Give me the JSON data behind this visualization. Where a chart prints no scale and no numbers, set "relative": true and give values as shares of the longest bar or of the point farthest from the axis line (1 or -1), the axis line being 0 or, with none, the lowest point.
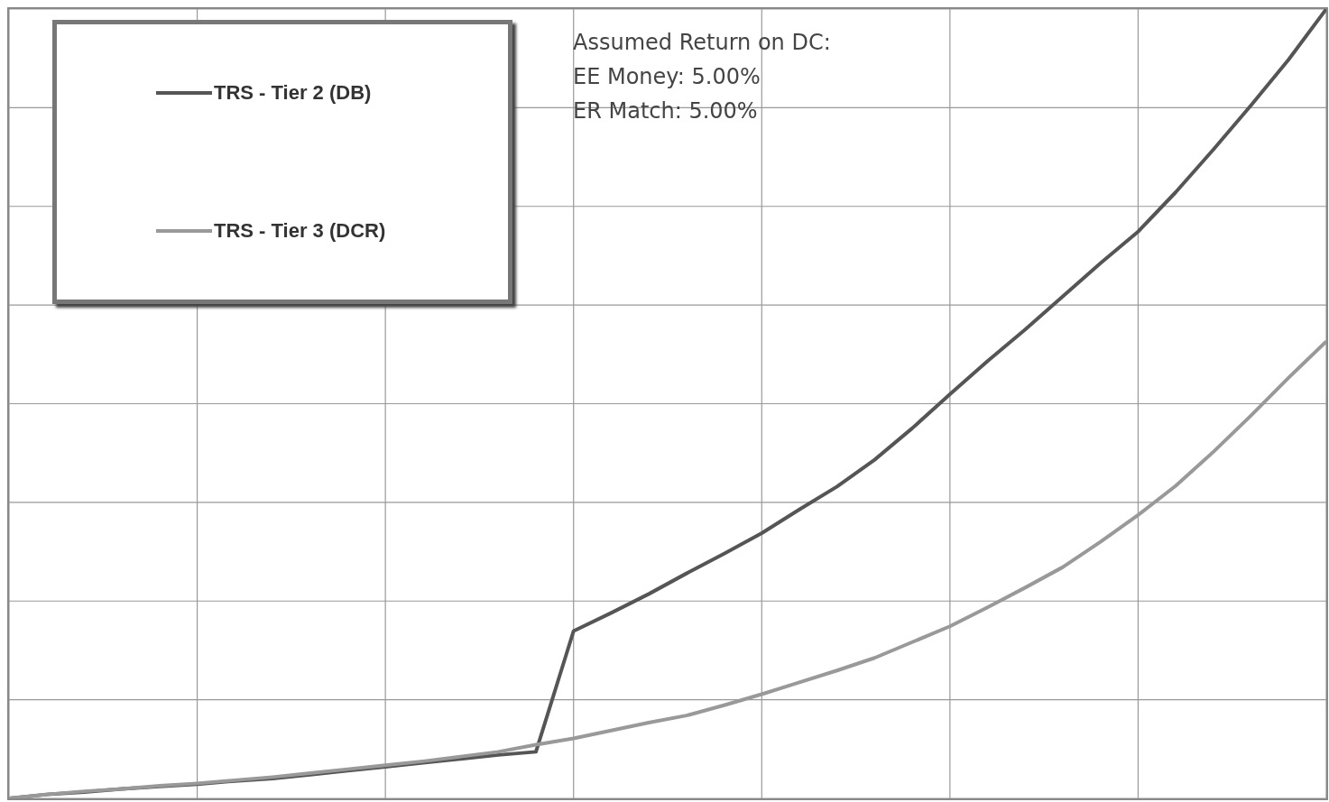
{
  "chart_data": {
    "type": "line",
    "relative": true,
    "grid": true,
    "legend": "top left",
    "marker": "none",
    "line_style": "solid",
    "categories": [
      null,
      null,
      null,
      null,
      null,
      null,
      null,
      null,
      null,
      null,
      null,
      null,
      null,
      null,
      null,
      null,
      null,
      null,
      null,
      null,
      null,
      null,
      null,
      null,
      null,
      null,
      null,
      null,
      null,
      null,
      null,
      null,
      null,
      null,
      null,
      null
    ],
    "annotations": [
      "Assumed Return on DC:",
      "EE Money: 5.00%",
      "ER Match: 5.00%"
    ],
    "series": [
      {
        "name": "TRS - Tier 2 (DB)",
        "color": "#555555",
        "values": [
          0,
          0.005,
          0.008,
          0.012,
          0.015,
          0.018,
          0.022,
          0.025,
          0.03,
          0.035,
          0.04,
          0.045,
          0.05,
          0.055,
          0.059,
          0.212,
          0.235,
          0.259,
          0.285,
          0.31,
          0.336,
          0.366,
          0.395,
          0.429,
          0.469,
          0.512,
          0.554,
          0.594,
          0.636,
          0.678,
          0.718,
          0.768,
          0.822,
          0.878,
          0.936,
          1
        ]
      },
      {
        "name": "TRS - Tier 3 (DCR)",
        "color": "#999999",
        "values": [
          0,
          0.005,
          0.009,
          0.012,
          0.016,
          0.019,
          0.023,
          0.027,
          0.032,
          0.037,
          0.042,
          0.047,
          0.053,
          0.059,
          0.068,
          0.076,
          0.086,
          0.096,
          0.105,
          0.118,
          0.132,
          0.147,
          0.162,
          0.178,
          0.198,
          0.218,
          0.242,
          0.267,
          0.293,
          0.325,
          0.359,
          0.396,
          0.439,
          0.485,
          0.533,
          0.579
        ]
      }
    ]
  }
}
